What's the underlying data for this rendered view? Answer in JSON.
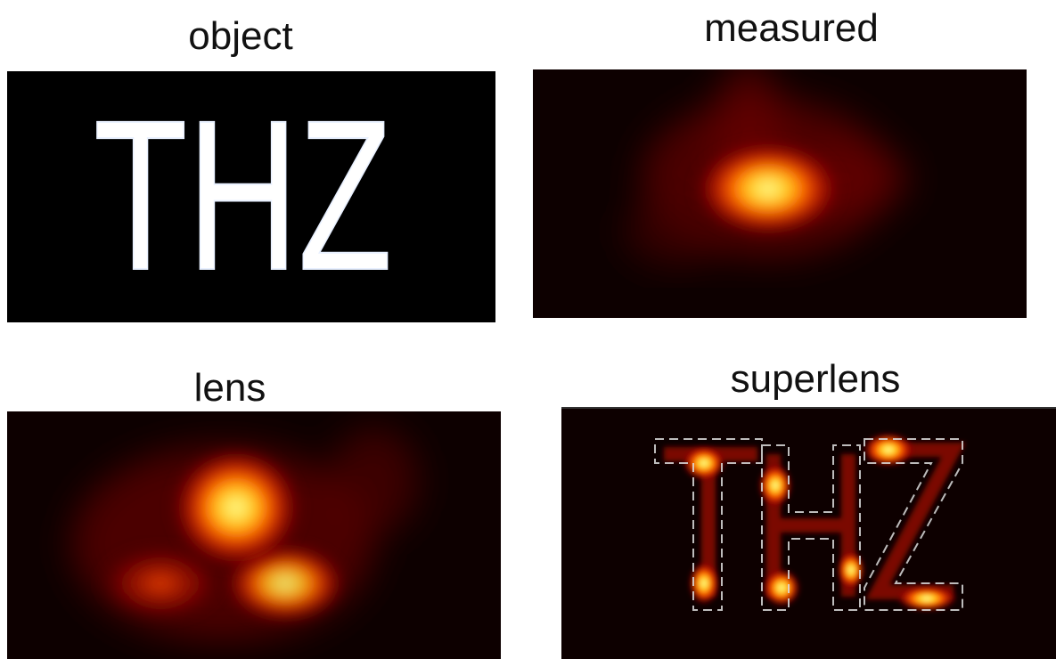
{
  "panels": [
    {
      "label": "object",
      "content": "THZ"
    },
    {
      "label": "measured"
    },
    {
      "label": "lens"
    },
    {
      "label": "superlens"
    }
  ]
}
